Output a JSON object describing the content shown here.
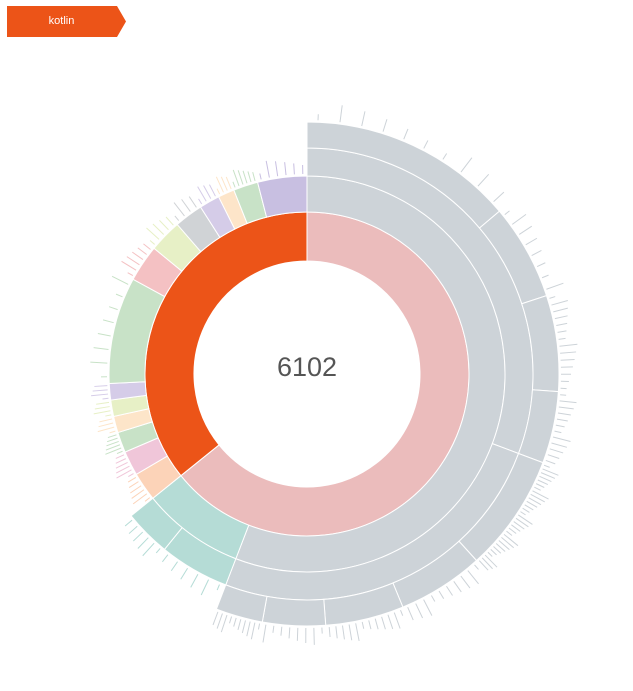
{
  "breadcrumb": {
    "label": "kotlin",
    "color": "#ec5418"
  },
  "center_value": "6102",
  "chart_data": {
    "type": "sunburst",
    "total": 6102,
    "root_color": "#ec5418",
    "children": [
      {
        "share": 0.642,
        "color": "#ebbcbc",
        "children": [
          {
            "share": 0.87,
            "color": "#cdd3d8",
            "children": [
              {
                "share": 0.55,
                "color": "#cdd3d8",
                "children": [
                  {
                    "share": 0.45,
                    "color": "#cdd3d8",
                    "fine": 10
                  },
                  {
                    "share": 0.2,
                    "color": "#cdd3d8",
                    "fine": 8
                  },
                  {
                    "share": 0.2,
                    "color": "#cdd3d8",
                    "fine": 14
                  },
                  {
                    "share": 0.15,
                    "color": "#cdd3d8",
                    "fine": 12
                  }
                ]
              },
              {
                "share": 0.45,
                "color": "#cdd3d8",
                "children": [
                  {
                    "share": 0.3,
                    "color": "#cdd3d8",
                    "fine": 30
                  },
                  {
                    "share": 0.22,
                    "color": "#cdd3d8",
                    "fine": 10
                  },
                  {
                    "share": 0.2,
                    "color": "#cdd3d8",
                    "fine": 12
                  },
                  {
                    "share": 0.16,
                    "color": "#cdd3d8",
                    "fine": 8
                  },
                  {
                    "share": 0.12,
                    "color": "#cdd3d8",
                    "fine": 10
                  }
                ]
              }
            ]
          },
          {
            "share": 0.13,
            "color": "#b5dcd6",
            "children": [
              {
                "share": 0.6,
                "color": "#b5dcd6",
                "fine": 6
              },
              {
                "share": 0.4,
                "color": "#b5dcd6",
                "fine": 6
              }
            ]
          }
        ]
      },
      {
        "share": 0.358,
        "color": "#ec5418",
        "children": [
          {
            "share": 0.07,
            "color": "#fcd3b8",
            "fine": 6
          },
          {
            "share": 0.06,
            "color": "#f0c6d9",
            "fine": 6
          },
          {
            "share": 0.05,
            "color": "#c8e2c7",
            "fine": 6
          },
          {
            "share": 0.04,
            "color": "#fde5c9",
            "fine": 4
          },
          {
            "share": 0.04,
            "color": "#e7f0c6",
            "fine": 4
          },
          {
            "share": 0.04,
            "color": "#d5cce8",
            "fine": 4
          },
          {
            "share": 0.26,
            "color": "#c8e2c7",
            "fine": 8
          },
          {
            "share": 0.09,
            "color": "#f4c1c3",
            "fine": 6
          },
          {
            "share": 0.08,
            "color": "#e7f0c6",
            "fine": 5
          },
          {
            "share": 0.07,
            "color": "#d0d3d6",
            "fine": 4
          },
          {
            "share": 0.05,
            "color": "#d5cce8",
            "fine": 4
          },
          {
            "share": 0.04,
            "color": "#fde5c9",
            "fine": 4
          },
          {
            "share": 0.06,
            "color": "#c8e2c7",
            "fine": 6
          },
          {
            "share": 0.12,
            "color": "#c8bfe1",
            "fine": 6
          }
        ]
      }
    ]
  }
}
